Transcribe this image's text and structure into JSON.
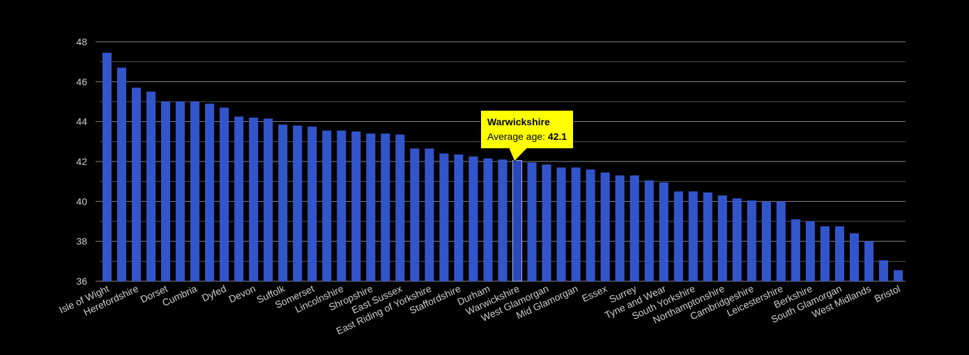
{
  "colors": {
    "background": "#000000",
    "bar": "#3355cc",
    "highlight_bar": "#2a48b8",
    "grid": "#555555",
    "grid_major": "#888888",
    "tooltip_bg": "#ffff00",
    "text": "#cfcfcf"
  },
  "tooltip": {
    "title": "Warwickshire",
    "label": "Average age:",
    "value": "42.1"
  },
  "chart_data": {
    "type": "bar",
    "title": "",
    "xlabel": "",
    "ylabel": "",
    "ylim": [
      36,
      48
    ],
    "yticks": [
      36,
      38,
      40,
      42,
      44,
      46,
      48
    ],
    "grid": true,
    "highlight": "Warwickshire",
    "categories": [
      "Isle of Wight",
      "",
      "Herefordshire",
      "",
      "Dorset",
      "",
      "Cumbria",
      "",
      "Dyfed",
      "",
      "Devon",
      "",
      "Suffolk",
      "",
      "Somerset",
      "",
      "Lincolnshire",
      "",
      "Shropshire",
      "",
      "East Sussex",
      "",
      "East Riding of Yorkshire",
      "",
      "Staffordshire",
      "",
      "Durham",
      "",
      "Warwickshire",
      "",
      "West Glamorgan",
      "",
      "Mid Glamorgan",
      "",
      "Essex",
      "",
      "Surrey",
      "",
      "Tyne and Wear",
      "",
      "South Yorkshire",
      "",
      "Northamptonshire",
      "",
      "Cambridgeshire",
      "",
      "Leicestershire",
      "",
      "Berkshire",
      "",
      "South Glamorgan",
      "",
      "West Midlands",
      "",
      "Bristol"
    ],
    "values": [
      47.45,
      46.7,
      45.7,
      45.5,
      45.0,
      45.0,
      45.0,
      44.9,
      44.7,
      44.25,
      44.2,
      44.15,
      43.85,
      43.8,
      43.75,
      43.55,
      43.55,
      43.5,
      43.4,
      43.4,
      43.35,
      42.65,
      42.65,
      42.4,
      42.35,
      42.25,
      42.15,
      42.1,
      42.05,
      41.95,
      41.85,
      41.7,
      41.7,
      41.6,
      41.45,
      41.3,
      41.3,
      41.05,
      40.95,
      40.5,
      40.5,
      40.45,
      40.3,
      40.15,
      40.05,
      40.0,
      40.0,
      39.1,
      39.0,
      38.75,
      38.75,
      38.4,
      38.0,
      37.05,
      36.55
    ]
  }
}
